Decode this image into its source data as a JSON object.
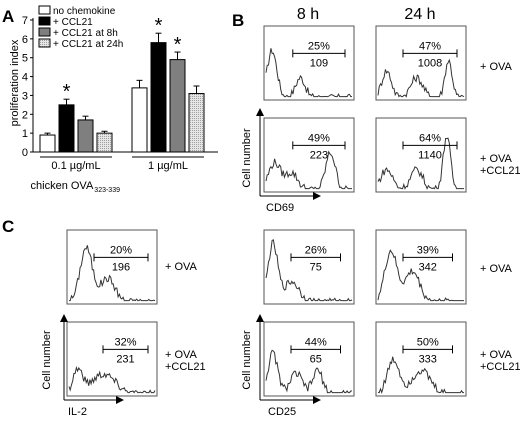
{
  "panel_labels": [
    "A",
    "B",
    "C"
  ],
  "chart_data": [
    {
      "type": "bar",
      "panel": "A",
      "ylabel": "proliferation index",
      "xlabel": "chicken OVA",
      "xlabel_subscript": "323-339",
      "ylim": [
        0,
        7
      ],
      "yticks": [
        "0",
        "1",
        "2",
        "3",
        "4",
        "5",
        "6",
        "7"
      ],
      "groups": [
        "0.1 µg/mL",
        "1 µg/mL"
      ],
      "series": [
        {
          "name": "no chemokine",
          "values": [
            0.9,
            3.4
          ],
          "errors": [
            0.1,
            0.4
          ],
          "color": "#ffffff",
          "significant": [
            false,
            false
          ]
        },
        {
          "name": "+ CCL21",
          "values": [
            2.5,
            5.8
          ],
          "errors": [
            0.3,
            0.5
          ],
          "color": "#000000",
          "significant": [
            true,
            true
          ]
        },
        {
          "name": "+ CCL21 at 8h",
          "values": [
            1.7,
            4.9
          ],
          "errors": [
            0.2,
            0.4
          ],
          "color": "#7f7f7f",
          "significant": [
            false,
            true
          ]
        },
        {
          "name": "+ CCL21 at 24h",
          "values": [
            1.0,
            3.1
          ],
          "errors": [
            0.1,
            0.4
          ],
          "color": "#c8c8c8",
          "significant": [
            false,
            false
          ]
        }
      ],
      "significance_marker": "*"
    }
  ],
  "panel_b": {
    "time_labels": [
      "8 h",
      "24 h"
    ],
    "y_axis_label": "Cell number",
    "histograms": [
      {
        "id": "cd69-8h-ova",
        "percent": "25%",
        "mfi": "109",
        "condition": "+ OVA"
      },
      {
        "id": "cd69-24h-ova",
        "percent": "47%",
        "mfi": "1008",
        "condition": "+ OVA"
      },
      {
        "id": "cd69-8h-ccl21",
        "percent": "49%",
        "mfi": "223",
        "condition": "+ OVA +CCL21"
      },
      {
        "id": "cd69-24h-ccl21",
        "percent": "64%",
        "mfi": "1140",
        "condition": "+ OVA +CCL21"
      },
      {
        "id": "cd25-8h-ova",
        "percent": "26%",
        "mfi": "75",
        "condition": "+ OVA"
      },
      {
        "id": "cd25-24h-ova",
        "percent": "39%",
        "mfi": "342",
        "condition": "+ OVA"
      },
      {
        "id": "cd25-8h-ccl21",
        "percent": "44%",
        "mfi": "65",
        "condition": "+ OVA +CCL21"
      },
      {
        "id": "cd25-24h-ccl21",
        "percent": "50%",
        "mfi": "333",
        "condition": "+ OVA +CCL21"
      }
    ],
    "x_labels": {
      "cd69": "CD69",
      "cd25": "CD25"
    },
    "conditions": {
      "ova": "+ OVA",
      "ova_line1": "+ OVA",
      "ova_line2": "+CCL21"
    }
  },
  "panel_c": {
    "y_axis_label": "Cell number",
    "x_label": "IL-2",
    "histograms": [
      {
        "id": "il2-ova",
        "percent": "20%",
        "mfi": "196",
        "condition": "+ OVA"
      },
      {
        "id": "il2-ccl21",
        "percent": "32%",
        "mfi": "231",
        "condition": "+ OVA +CCL21"
      }
    ]
  }
}
